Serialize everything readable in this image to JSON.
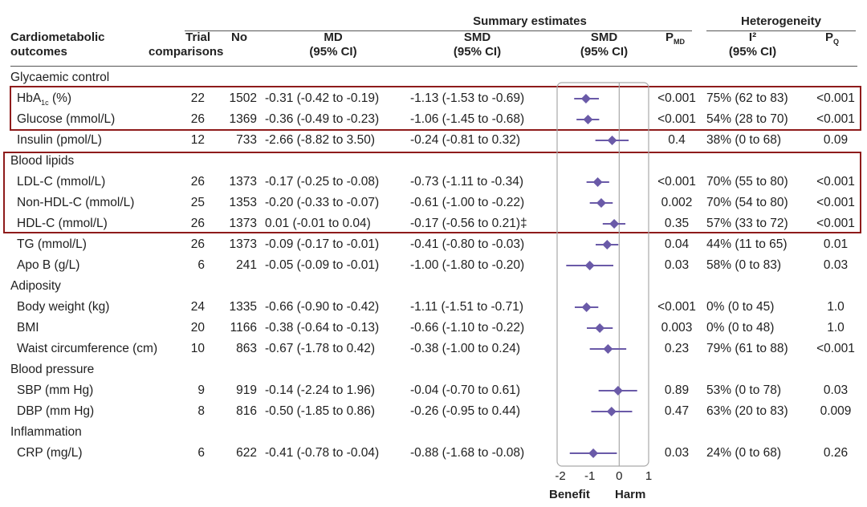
{
  "header": {
    "group_summary": "Summary estimates",
    "group_heterogeneity": "Heterogeneity",
    "col_outcome": [
      "Cardiometabolic",
      "outcomes"
    ],
    "col_trial": [
      "Trial",
      "comparisons"
    ],
    "col_no": "No",
    "col_md": [
      "MD",
      "(95% CI)"
    ],
    "col_smd": [
      "SMD",
      "(95% CI)"
    ],
    "col_smd_plot": [
      "SMD",
      "(95% CI)"
    ],
    "col_pmd": "P",
    "col_pmd_sub": "MD",
    "col_i2": [
      "I²",
      "(95% CI)"
    ],
    "col_pq": "P",
    "col_pq_sub": "Q"
  },
  "groups": {
    "glycaemic": "Glycaemic control",
    "lipids": "Blood lipids",
    "adiposity": "Adiposity",
    "bp": "Blood pressure",
    "inflammation": "Inflammation"
  },
  "rows": [
    {
      "outcome": "HbA1c (%)",
      "trials": "22",
      "no": "1502",
      "md": "-0.31 (-0.42 to -0.19)",
      "smd": "-1.13 (-1.53 to -0.69)",
      "p_md": "<0.001",
      "i2": "75% (62 to 83)",
      "p_q": "<0.001"
    },
    {
      "outcome": "Glucose (mmol/L)",
      "trials": "26",
      "no": "1369",
      "md": "-0.36 (-0.49 to -0.23)",
      "smd": "-1.06 (-1.45 to -0.68)",
      "p_md": "<0.001",
      "i2": "54% (28 to 70)",
      "p_q": "<0.001"
    },
    {
      "outcome": "Insulin (pmol/L)",
      "trials": "12",
      "no": "733",
      "md": "-2.66 (-8.82 to 3.50)",
      "smd": "-0.24 (-0.81 to 0.32)",
      "p_md": "0.4",
      "i2": "38% (0 to 68)",
      "p_q": "0.09"
    },
    {
      "outcome": "LDL-C (mmol/L)",
      "trials": "26",
      "no": "1373",
      "md": "-0.17 (-0.25 to -0.08)",
      "smd": "-0.73 (-1.11 to -0.34)",
      "p_md": "<0.001",
      "i2": "70% (55 to 80)",
      "p_q": "<0.001"
    },
    {
      "outcome": "Non-HDL-C (mmol/L)",
      "trials": "25",
      "no": "1353",
      "md": "-0.20 (-0.33 to -0.07)",
      "smd": "-0.61 (-1.00 to -0.22)",
      "p_md": "0.002",
      "i2": "70% (54 to 80)",
      "p_q": "<0.001"
    },
    {
      "outcome": "HDL-C (mmol/L)",
      "trials": "26",
      "no": "1373",
      "md": "0.01 (-0.01 to 0.04)",
      "smd": "-0.17 (-0.56 to 0.21)‡",
      "p_md": "0.35",
      "i2": "57% (33 to 72)",
      "p_q": "<0.001"
    },
    {
      "outcome": "TG (mmol/L)",
      "trials": "26",
      "no": "1373",
      "md": "-0.09 (-0.17 to -0.01)",
      "smd": "-0.41 (-0.80 to -0.03)",
      "p_md": "0.04",
      "i2": "44% (11 to 65)",
      "p_q": "0.01"
    },
    {
      "outcome": "Apo B (g/L)",
      "trials": "6",
      "no": "241",
      "md": "-0.05 (-0.09 to -0.01)",
      "smd": "-1.00 (-1.80 to -0.20)",
      "p_md": "0.03",
      "i2": "58% (0 to 83)",
      "p_q": "0.03"
    },
    {
      "outcome": "Body weight (kg)",
      "trials": "24",
      "no": "1335",
      "md": "-0.66 (-0.90 to -0.42)",
      "smd": "-1.11 (-1.51 to -0.71)",
      "p_md": "<0.001",
      "i2": "0% (0 to 45)",
      "p_q": "1.0"
    },
    {
      "outcome": "BMI",
      "trials": "20",
      "no": "1166",
      "md": "-0.38 (-0.64 to -0.13)",
      "smd": "-0.66 (-1.10 to -0.22)",
      "p_md": "0.003",
      "i2": "0% (0 to 48)",
      "p_q": "1.0"
    },
    {
      "outcome": "Waist circumference (cm)",
      "trials": "10",
      "no": "863",
      "md": "-0.67 (-1.78 to 0.42)",
      "smd": "-0.38 (-1.00 to 0.24)",
      "p_md": "0.23",
      "i2": "79% (61 to 88)",
      "p_q": "<0.001"
    },
    {
      "outcome": "SBP (mm Hg)",
      "trials": "9",
      "no": "919",
      "md": "-0.14 (-2.24 to 1.96)",
      "smd": "-0.04 (-0.70 to 0.61)",
      "p_md": "0.89",
      "i2": "53% (0 to 78)",
      "p_q": "0.03"
    },
    {
      "outcome": "DBP (mm Hg)",
      "trials": "8",
      "no": "816",
      "md": "-0.50 (-1.85 to 0.86)",
      "smd": "-0.26 (-0.95 to 0.44)",
      "p_md": "0.47",
      "i2": "63% (20 to 83)",
      "p_q": "0.009"
    },
    {
      "outcome": "CRP (mg/L)",
      "trials": "6",
      "no": "622",
      "md": "-0.41 (-0.78 to -0.04)",
      "smd": "-0.88 (-1.68 to -0.08)",
      "p_md": "0.03",
      "i2": "24% (0 to 68)",
      "p_q": "0.26"
    }
  ],
  "footer": {
    "benefit": "Benefit",
    "harm": "Harm"
  },
  "colors": {
    "marker": "#6a5aa8",
    "highlight_box": "#8e1b1b",
    "panel_border": "#a9a9a9"
  },
  "chart_data": {
    "type": "forest",
    "title": "Summary estimates",
    "xlabel": "SMD (95% CI)",
    "xlim": [
      -2,
      1
    ],
    "xticks": [
      "-2",
      "-1",
      "0",
      "1"
    ],
    "reference_line": 0,
    "annotations": [
      "Benefit",
      "Harm"
    ],
    "points": [
      {
        "label": "HbA1c (%)",
        "estimate": -1.13,
        "lower": -1.53,
        "upper": -0.69
      },
      {
        "label": "Glucose (mmol/L)",
        "estimate": -1.06,
        "lower": -1.45,
        "upper": -0.68
      },
      {
        "label": "Insulin (pmol/L)",
        "estimate": -0.24,
        "lower": -0.81,
        "upper": 0.32
      },
      {
        "label": "LDL-C (mmol/L)",
        "estimate": -0.73,
        "lower": -1.11,
        "upper": -0.34
      },
      {
        "label": "Non-HDL-C (mmol/L)",
        "estimate": -0.61,
        "lower": -1.0,
        "upper": -0.22
      },
      {
        "label": "HDL-C (mmol/L)",
        "estimate": -0.17,
        "lower": -0.56,
        "upper": 0.21
      },
      {
        "label": "TG (mmol/L)",
        "estimate": -0.41,
        "lower": -0.8,
        "upper": -0.03
      },
      {
        "label": "Apo B (g/L)",
        "estimate": -1.0,
        "lower": -1.8,
        "upper": -0.2
      },
      {
        "label": "Body weight (kg)",
        "estimate": -1.11,
        "lower": -1.51,
        "upper": -0.71
      },
      {
        "label": "BMI",
        "estimate": -0.66,
        "lower": -1.1,
        "upper": -0.22
      },
      {
        "label": "Waist circumference (cm)",
        "estimate": -0.38,
        "lower": -1.0,
        "upper": 0.24
      },
      {
        "label": "SBP (mm Hg)",
        "estimate": -0.04,
        "lower": -0.7,
        "upper": 0.61
      },
      {
        "label": "DBP (mm Hg)",
        "estimate": -0.26,
        "lower": -0.95,
        "upper": 0.44
      },
      {
        "label": "CRP (mg/L)",
        "estimate": -0.88,
        "lower": -1.68,
        "upper": -0.08
      }
    ]
  }
}
